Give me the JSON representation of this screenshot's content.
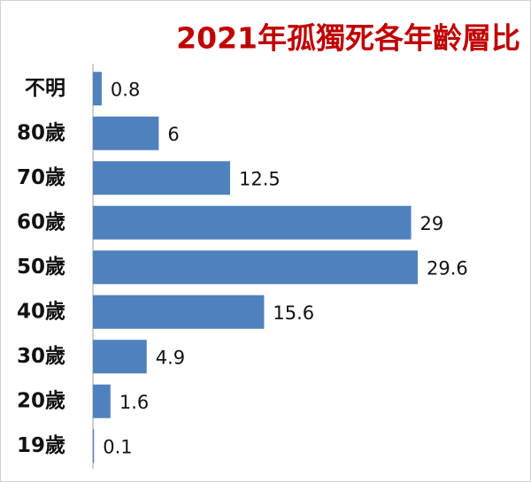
{
  "chart_data": {
    "type": "bar",
    "orientation": "horizontal",
    "title": "2021年孤獨死各年齡層比",
    "categories": [
      "不明",
      "80歲",
      "70歲",
      "60歲",
      "50歲",
      "40歲",
      "30歲",
      "20歲",
      "19歲"
    ],
    "values": [
      0.8,
      6,
      12.5,
      29,
      29.6,
      15.6,
      4.9,
      1.6,
      0.1
    ],
    "color": "#4f81bd",
    "title_color": "#c00000"
  }
}
